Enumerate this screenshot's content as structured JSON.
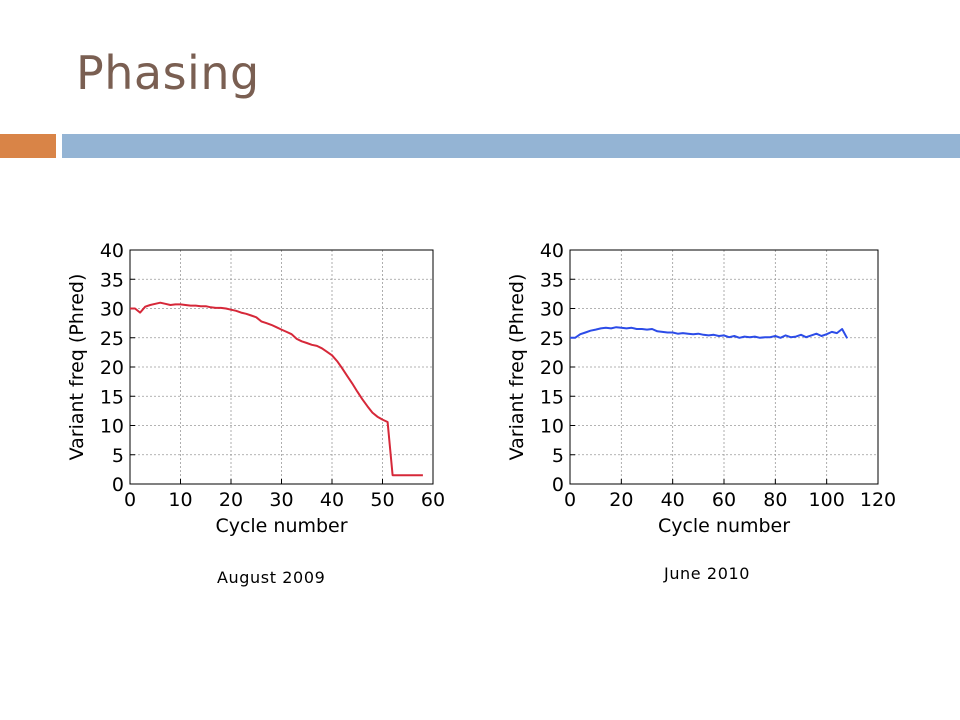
{
  "slide": {
    "title": "Phasing"
  },
  "colors": {
    "title": "#7a5f52",
    "accent_orange": "#d98447",
    "accent_blue": "#94b4d4",
    "series_left": "#d62839",
    "series_right": "#2c4ce8"
  },
  "chart_data": [
    {
      "type": "line",
      "caption": "August 2009",
      "xlabel": "Cycle number",
      "ylabel": "Variant freq (Phred)",
      "xlim": [
        0,
        60
      ],
      "ylim": [
        0,
        40
      ],
      "xticks": [
        0,
        10,
        20,
        30,
        40,
        50,
        60
      ],
      "yticks": [
        0,
        5,
        10,
        15,
        20,
        25,
        30,
        35,
        40
      ],
      "grid": true,
      "series": [
        {
          "color": "#d62839",
          "x": [
            0,
            1,
            2,
            3,
            4,
            5,
            6,
            7,
            8,
            9,
            10,
            11,
            12,
            13,
            14,
            15,
            16,
            17,
            18,
            19,
            20,
            21,
            22,
            23,
            24,
            25,
            26,
            27,
            28,
            29,
            30,
            31,
            32,
            33,
            34,
            35,
            36,
            37,
            38,
            39,
            40,
            41,
            42,
            43,
            44,
            45,
            46,
            47,
            48,
            49,
            50,
            51,
            52,
            53,
            54,
            55,
            56,
            57,
            58
          ],
          "y": [
            30,
            30,
            29.3,
            30.3,
            30.6,
            30.8,
            31,
            30.8,
            30.6,
            30.7,
            30.7,
            30.6,
            30.5,
            30.5,
            30.4,
            30.4,
            30.2,
            30.1,
            30.1,
            30,
            29.8,
            29.6,
            29.3,
            29.1,
            28.8,
            28.5,
            27.8,
            27.5,
            27.2,
            26.8,
            26.4,
            26,
            25.6,
            24.8,
            24.4,
            24.1,
            23.8,
            23.6,
            23.2,
            22.6,
            22.0,
            21,
            19.8,
            18.5,
            17.2,
            15.8,
            14.5,
            13.3,
            12.2,
            11.5,
            11,
            10.6,
            1.5,
            1.5,
            1.5,
            1.5,
            1.5,
            1.5,
            1.5
          ]
        }
      ]
    },
    {
      "type": "line",
      "caption": "June 2010",
      "xlabel": "Cycle number",
      "ylabel": "Variant freq (Phred)",
      "xlim": [
        0,
        120
      ],
      "ylim": [
        0,
        40
      ],
      "xticks": [
        0,
        20,
        40,
        60,
        80,
        100,
        120
      ],
      "yticks": [
        0,
        5,
        10,
        15,
        20,
        25,
        30,
        35,
        40
      ],
      "grid": true,
      "series": [
        {
          "color": "#2c4ce8",
          "x": [
            0,
            2,
            4,
            6,
            8,
            10,
            12,
            14,
            16,
            18,
            20,
            22,
            24,
            26,
            28,
            30,
            32,
            34,
            36,
            38,
            40,
            42,
            44,
            46,
            48,
            50,
            52,
            54,
            56,
            58,
            60,
            62,
            64,
            66,
            68,
            70,
            72,
            74,
            76,
            78,
            80,
            82,
            84,
            86,
            88,
            90,
            92,
            94,
            96,
            98,
            100,
            102,
            104,
            106,
            108
          ],
          "y": [
            25,
            25,
            25.6,
            25.9,
            26.2,
            26.4,
            26.6,
            26.7,
            26.6,
            26.8,
            26.7,
            26.6,
            26.7,
            26.5,
            26.5,
            26.4,
            26.5,
            26.1,
            26.0,
            25.9,
            25.9,
            25.7,
            25.8,
            25.7,
            25.6,
            25.7,
            25.5,
            25.4,
            25.5,
            25.3,
            25.4,
            25.1,
            25.3,
            25.0,
            25.2,
            25.1,
            25.2,
            25.0,
            25.1,
            25.1,
            25.3,
            25.0,
            25.4,
            25.1,
            25.2,
            25.5,
            25.1,
            25.4,
            25.7,
            25.3,
            25.6,
            26.0,
            25.8,
            26.5,
            24.9
          ]
        }
      ]
    }
  ]
}
